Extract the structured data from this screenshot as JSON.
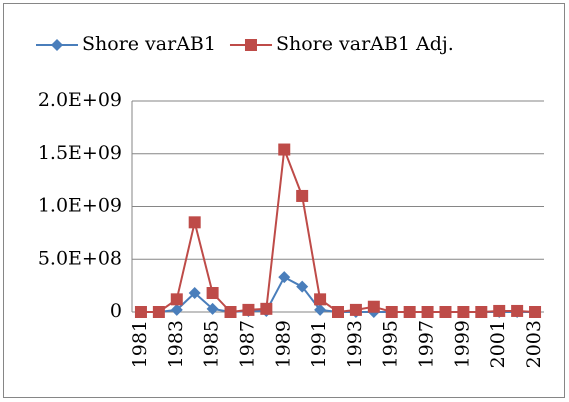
{
  "chart_data": {
    "type": "line",
    "categories": [
      "1981",
      null,
      "1983",
      null,
      "1985",
      null,
      "1987",
      null,
      "1989",
      null,
      "1991",
      null,
      "1993",
      null,
      "1995",
      null,
      "1997",
      null,
      "1999",
      null,
      "2001",
      null,
      "2003"
    ],
    "series": [
      {
        "name": "Shore varAB1",
        "color": "#4a7ebb",
        "marker": "diamond",
        "values": [
          0,
          0,
          20000000,
          180000000,
          30000000,
          0,
          10000000,
          10000000,
          330000000,
          240000000,
          20000000,
          0,
          0,
          0,
          0,
          0,
          0,
          0,
          0,
          0,
          0,
          0,
          0
        ]
      },
      {
        "name": "Shore varAB1 Adj.",
        "color": "#be4b48",
        "marker": "square",
        "values": [
          0,
          0,
          120000000,
          850000000,
          180000000,
          0,
          20000000,
          30000000,
          1540000000,
          1100000000,
          120000000,
          0,
          20000000,
          50000000,
          0,
          0,
          0,
          0,
          0,
          0,
          10000000,
          10000000,
          0
        ]
      }
    ],
    "ylim": [
      0,
      2000000000
    ],
    "yticks": [
      0,
      {
        "value": 500000000,
        "label": "5.0E+08"
      },
      {
        "value": 1000000000,
        "label": "1.0E+09"
      },
      {
        "value": 1500000000,
        "label": "1.5E+09"
      },
      {
        "value": 2000000000,
        "label": "2.0E+09"
      }
    ],
    "grid": true,
    "legend": "top"
  }
}
